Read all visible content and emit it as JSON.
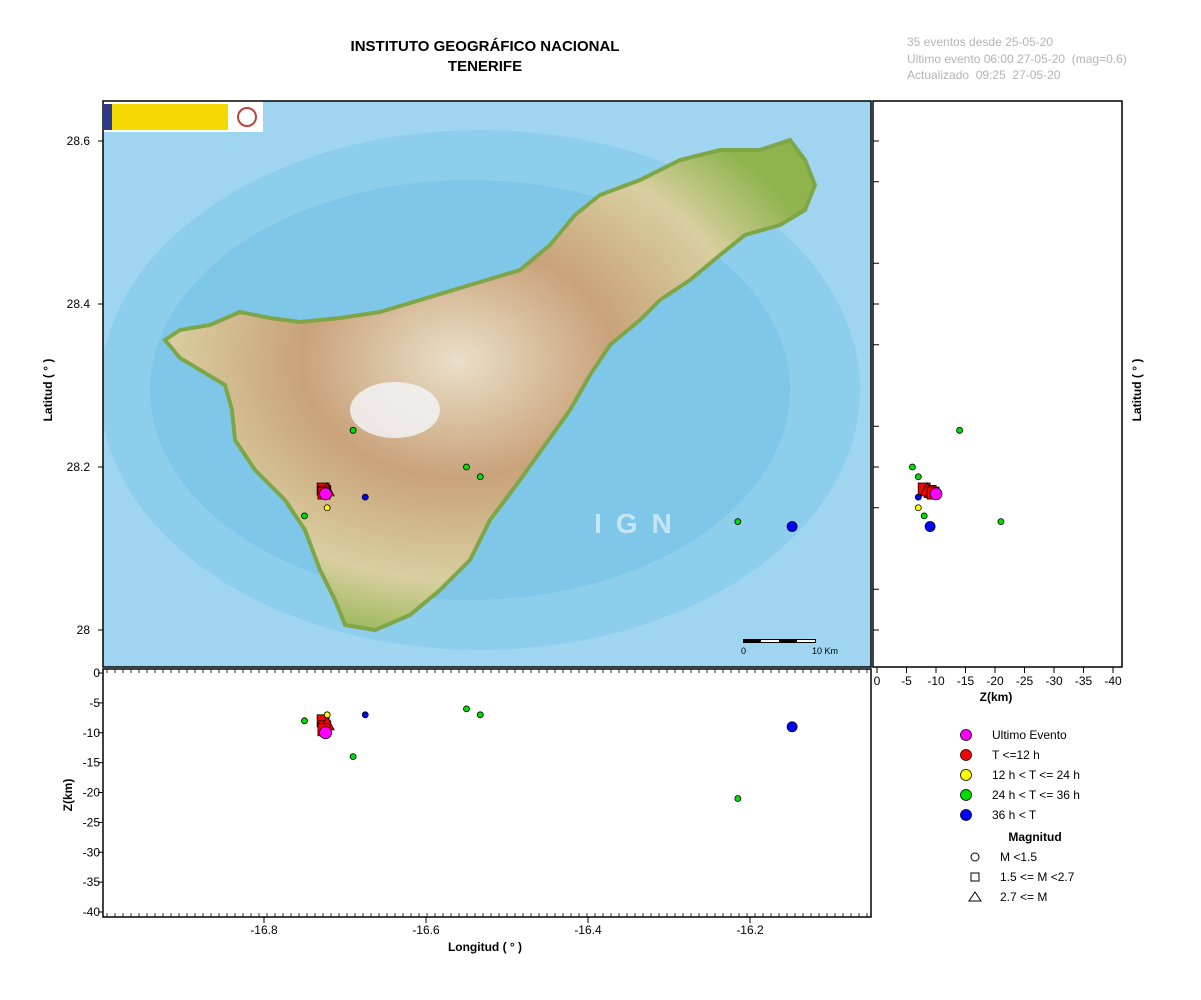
{
  "header": {
    "title_line1": "INSTITUTO GEOGRÁFICO NACIONAL",
    "title_line2": "TENERIFE"
  },
  "info": {
    "line1": "35 eventos desde 25-05-20",
    "line2": "Ultimo evento 06:00 27-05-20  (mag=0.6)",
    "line3": "Actualizado  09:25  27-05-20"
  },
  "map": {
    "watermark": "IGN",
    "scale_start": "0",
    "scale_end": "10 Km",
    "lat_ticks": [
      "28.6",
      "28.4",
      "28.2",
      "28"
    ],
    "lat_ticks_values": [
      28.6,
      28.4,
      28.2,
      28.0
    ],
    "lon_ticks": [
      "-16.8",
      "-16.6",
      "-16.4",
      "-16.2"
    ],
    "lon_ticks_values": [
      -16.8,
      -16.6,
      -16.4,
      -16.2
    ],
    "y_label": "Latitud ( ° )",
    "x_label": "Longitud ( ° )",
    "right_y_label": "Latitud ( ° )",
    "depth_label": "Z(km)",
    "depth_ticks": [
      "0",
      "-5",
      "-10",
      "-15",
      "-20",
      "-25",
      "-30",
      "-35",
      "-40"
    ],
    "depth_ticks_values": [
      0,
      -5,
      -10,
      -15,
      -20,
      -25,
      -30,
      -35,
      -40
    ],
    "depth_label_right": "Z(km)",
    "depth_ticks_right": [
      "0",
      "-5",
      "-10",
      "-15",
      "-20",
      "-25",
      "-30",
      "-35",
      "-40"
    ]
  },
  "legend": {
    "items": [
      {
        "label": "Ultimo Evento",
        "color": "#ff00ff"
      },
      {
        "label": "T <=12 h",
        "color": "#ff0000"
      },
      {
        "label": "12 h  < T <= 24 h",
        "color": "#ffff00"
      },
      {
        "label": "24 h  < T <= 36 h",
        "color": "#00dd00"
      },
      {
        "label": "36 h <  T",
        "color": "#0000ff"
      }
    ],
    "magnitude_title": "Magnitud",
    "magnitude_items": [
      {
        "label": "M <1.5",
        "symbol": "circle"
      },
      {
        "label": "1.5 <= M <2.7",
        "symbol": "square"
      },
      {
        "label": "2.7 <= M",
        "symbol": "triangle"
      }
    ]
  },
  "events": [
    {
      "lon": -16.727,
      "lat": 28.173,
      "depth": -8,
      "color": "#ff0000",
      "shape": "square"
    },
    {
      "lon": -16.725,
      "lat": 28.17,
      "depth": -9,
      "color": "#ff0000",
      "shape": "square"
    },
    {
      "lon": -16.722,
      "lat": 28.172,
      "depth": -8.5,
      "color": "#ff0000",
      "shape": "triangle"
    },
    {
      "lon": -16.726,
      "lat": 28.168,
      "depth": -9.5,
      "color": "#ff0000",
      "shape": "square"
    },
    {
      "lon": -16.724,
      "lat": 28.167,
      "depth": -10,
      "color": "#ff00ff",
      "shape": "circle"
    },
    {
      "lon": -16.722,
      "lat": 28.15,
      "depth": -7,
      "color": "#ffff00",
      "shape": "circle"
    },
    {
      "lon": -16.69,
      "lat": 28.245,
      "depth": -14,
      "color": "#00dd00",
      "shape": "circle"
    },
    {
      "lon": -16.55,
      "lat": 28.2,
      "depth": -6,
      "color": "#00dd00",
      "shape": "circle"
    },
    {
      "lon": -16.533,
      "lat": 28.188,
      "depth": -7,
      "color": "#00dd00",
      "shape": "circle"
    },
    {
      "lon": -16.75,
      "lat": 28.14,
      "depth": -8,
      "color": "#00dd00",
      "shape": "circle"
    },
    {
      "lon": -16.215,
      "lat": 28.133,
      "depth": -21,
      "color": "#00dd00",
      "shape": "circle"
    },
    {
      "lon": -16.675,
      "lat": 28.163,
      "depth": -7,
      "color": "#0000ff",
      "shape": "circle"
    },
    {
      "lon": -16.148,
      "lat": 28.127,
      "depth": -9,
      "color": "#0000ff",
      "shape": "circle"
    }
  ]
}
